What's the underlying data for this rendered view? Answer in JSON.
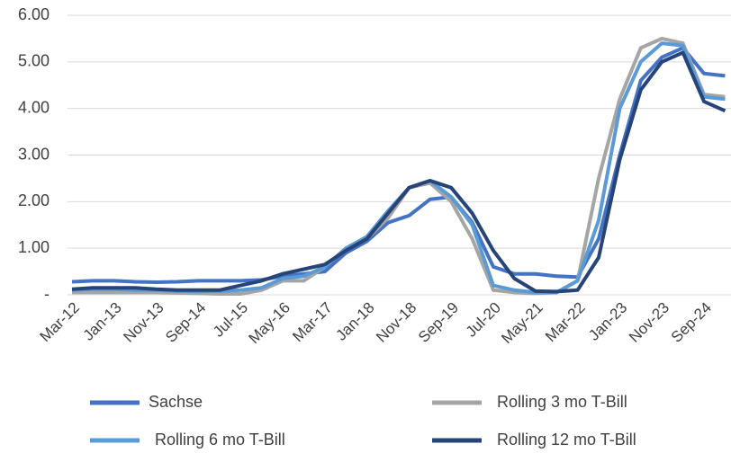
{
  "chart_data": {
    "type": "line",
    "categories": [
      "Mar-12",
      null,
      "Jan-13",
      null,
      "Nov-13",
      null,
      "Sep-14",
      null,
      "Jul-15",
      null,
      "May-16",
      null,
      "Mar-17",
      null,
      "Jan-18",
      null,
      "Nov-18",
      null,
      "Sep-19",
      null,
      "Jul-20",
      null,
      "May-21",
      null,
      "Mar-22",
      null,
      "Jan-23",
      null,
      "Nov-23",
      null,
      "Sep-24",
      null
    ],
    "series": [
      {
        "name": "Sachse",
        "color": "#4472c4",
        "values": [
          0.28,
          0.3,
          0.3,
          0.28,
          0.27,
          0.28,
          0.3,
          0.3,
          0.3,
          0.32,
          0.4,
          0.45,
          0.5,
          0.9,
          1.15,
          1.55,
          1.7,
          2.05,
          2.1,
          1.55,
          0.6,
          0.45,
          0.45,
          0.4,
          0.38,
          1.2,
          3.0,
          4.6,
          5.1,
          5.3,
          4.75,
          4.7
        ]
      },
      {
        "name": "Rolling 3 mo T-Bill",
        "color": "#a5a5a5",
        "values": [
          0.05,
          0.05,
          0.05,
          0.05,
          0.05,
          0.04,
          0.03,
          0.02,
          0.02,
          0.1,
          0.3,
          0.3,
          0.6,
          1.0,
          1.2,
          1.65,
          2.3,
          2.4,
          2.0,
          1.2,
          0.1,
          0.05,
          0.03,
          0.05,
          0.3,
          2.5,
          4.2,
          5.3,
          5.5,
          5.4,
          4.3,
          4.25
        ]
      },
      {
        "name": "Rolling 6 mo T-Bill",
        "color": "#5b9bd5",
        "values": [
          0.1,
          0.12,
          0.12,
          0.1,
          0.1,
          0.08,
          0.07,
          0.08,
          0.1,
          0.15,
          0.35,
          0.4,
          0.6,
          1.0,
          1.25,
          1.8,
          2.3,
          2.45,
          2.1,
          1.5,
          0.2,
          0.1,
          0.05,
          0.05,
          0.3,
          1.6,
          4.0,
          5.0,
          5.4,
          5.35,
          4.25,
          4.2
        ]
      },
      {
        "name": "Rolling 12 mo T-Bill",
        "color": "#264478",
        "values": [
          0.12,
          0.15,
          0.15,
          0.15,
          0.12,
          0.1,
          0.1,
          0.1,
          0.2,
          0.3,
          0.45,
          0.55,
          0.65,
          0.95,
          1.2,
          1.75,
          2.3,
          2.45,
          2.3,
          1.75,
          0.95,
          0.35,
          0.08,
          0.07,
          0.1,
          0.8,
          2.9,
          4.4,
          5.0,
          5.2,
          4.15,
          3.95
        ]
      }
    ],
    "ylim": [
      0,
      6
    ],
    "yticks": [
      {
        "value": 0,
        "label": "-"
      },
      {
        "value": 1,
        "label": "1.00"
      },
      {
        "value": 2,
        "label": "2.00"
      },
      {
        "value": 3,
        "label": "3.00"
      },
      {
        "value": 4,
        "label": "4.00"
      },
      {
        "value": 5,
        "label": "5.00"
      },
      {
        "value": 6,
        "label": "6.00"
      }
    ],
    "grid": true
  }
}
